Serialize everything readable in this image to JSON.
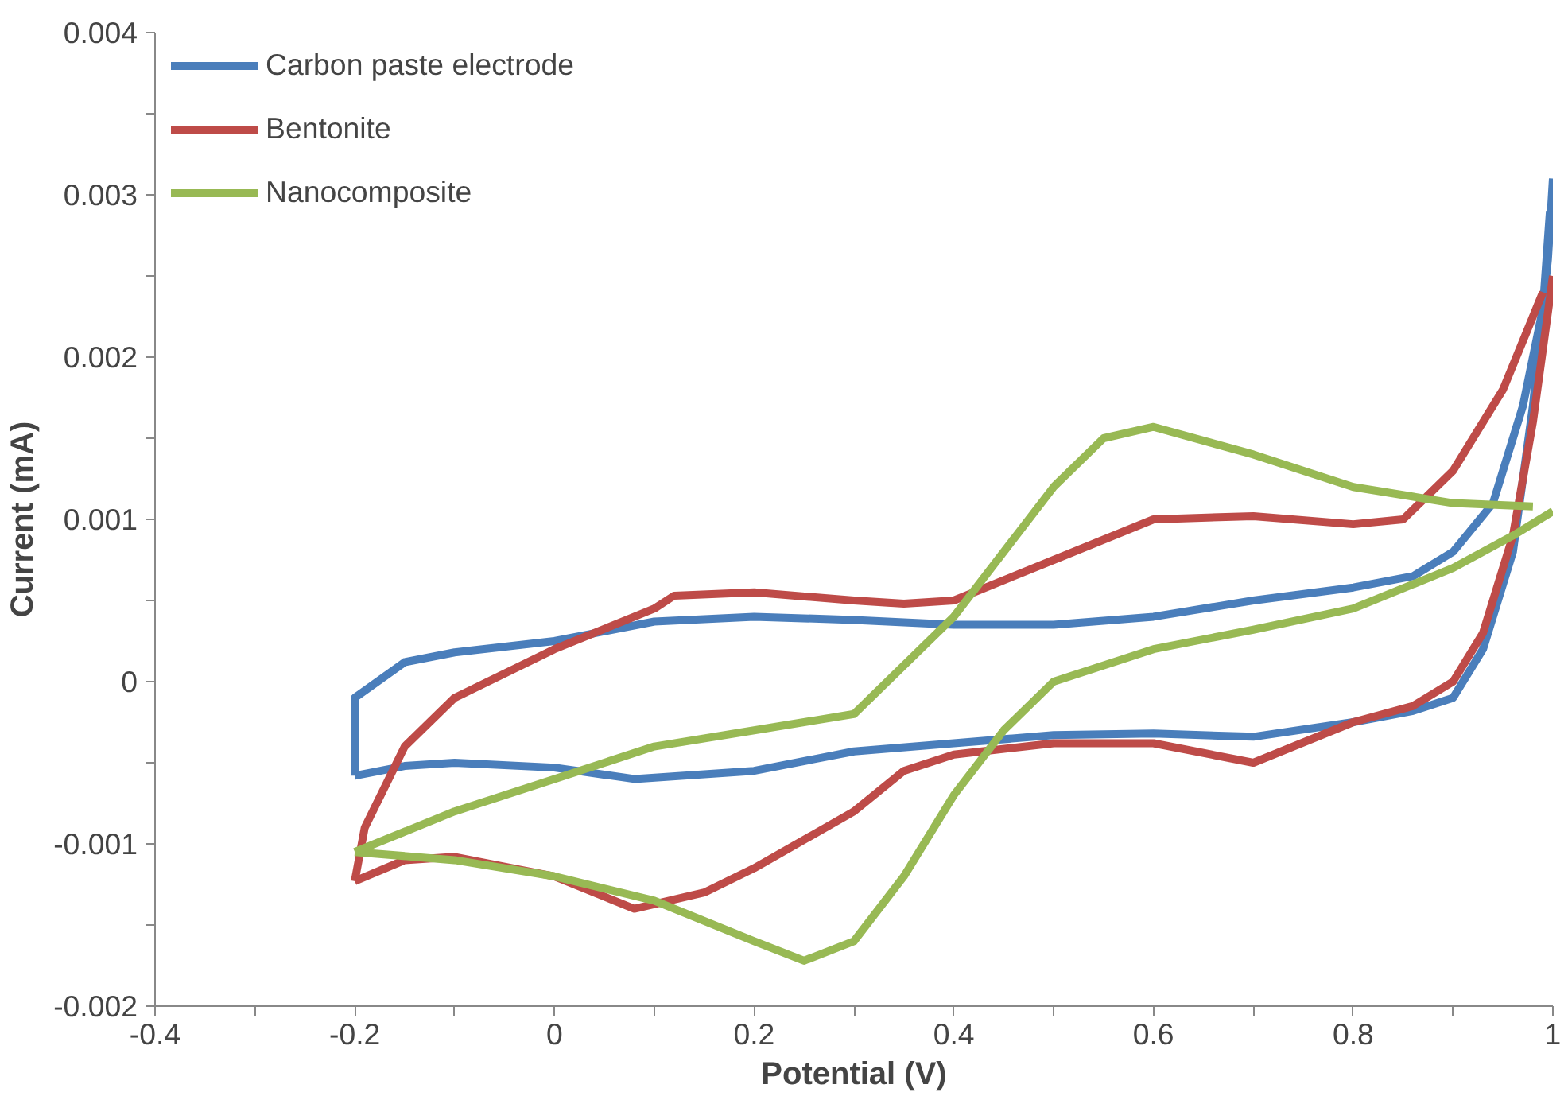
{
  "chart_data": {
    "type": "line",
    "xlabel": "Potential (V)",
    "ylabel": "Current (mA)",
    "xlim": [
      -0.4,
      1
    ],
    "ylim": [
      -0.002,
      0.004
    ],
    "xticks": [
      -0.4,
      {
        "value": -0.3,
        "label": null
      },
      -0.2,
      {
        "value": -0.1,
        "label": null
      },
      0,
      {
        "value": 0.1,
        "label": null
      },
      0.2,
      {
        "value": 0.3,
        "label": null
      },
      0.4,
      {
        "value": 0.5,
        "label": null
      },
      0.6,
      {
        "value": 0.7,
        "label": null
      },
      0.8,
      {
        "value": 0.9,
        "label": null
      },
      1
    ],
    "yticks": [
      -0.002,
      {
        "value": -0.0015,
        "label": null
      },
      -0.001,
      {
        "value": -0.0005,
        "label": null
      },
      0,
      {
        "value": 0.0005,
        "label": null
      },
      0.001,
      {
        "value": 0.0015,
        "label": null
      },
      0.002,
      {
        "value": 0.0025,
        "label": null
      },
      0.003,
      {
        "value": 0.0035,
        "label": null
      },
      0.004
    ],
    "grid": false,
    "legend": "top left",
    "marker": "none",
    "line_style": "solid",
    "series": [
      {
        "name": "Carbon paste electrode",
        "color": "#4a7ebb",
        "x": [
          -0.2,
          -0.15,
          -0.1,
          0,
          0.08,
          0.2,
          0.3,
          0.4,
          0.5,
          0.6,
          0.7,
          0.8,
          0.86,
          0.9,
          0.93,
          0.96,
          0.98,
          0.995,
          1
        ],
        "values": [
          -0.00058,
          -0.00052,
          -0.0005,
          -0.00053,
          -0.0006,
          -0.00055,
          -0.00043,
          -0.00038,
          -0.00033,
          -0.00032,
          -0.00034,
          -0.00025,
          -0.00018,
          -0.0001,
          0.0002,
          0.0008,
          0.0017,
          0.0026,
          0.0031
        ]
      },
      {
        "color": "#4a7ebb",
        "x": [
          -0.2,
          -0.2,
          -0.15,
          -0.1,
          0,
          0.1,
          0.2,
          0.3,
          0.4,
          0.5,
          0.6,
          0.7,
          0.8,
          0.86,
          0.9,
          0.94,
          0.97,
          0.99,
          0.997
        ],
        "values": [
          -0.00058,
          -0.0001,
          0.00012,
          0.00018,
          0.00025,
          0.00037,
          0.0004,
          0.00038,
          0.00035,
          0.00035,
          0.0004,
          0.0005,
          0.00058,
          0.00065,
          0.0008,
          0.0011,
          0.0017,
          0.0023,
          0.0029
        ]
      },
      {
        "name": "Bentonite",
        "color": "#be4b48",
        "x": [
          -0.2,
          -0.15,
          -0.1,
          0,
          0.08,
          0.15,
          0.2,
          0.3,
          0.35,
          0.4,
          0.5,
          0.6,
          0.7,
          0.8,
          0.86,
          0.9,
          0.93,
          0.96,
          0.98,
          1
        ],
        "values": [
          -0.00123,
          -0.0011,
          -0.00108,
          -0.0012,
          -0.0014,
          -0.0013,
          -0.00115,
          -0.0008,
          -0.00055,
          -0.00045,
          -0.00038,
          -0.00038,
          -0.0005,
          -0.00025,
          -0.00015,
          0,
          0.0003,
          0.0009,
          0.0016,
          0.0025
        ]
      },
      {
        "color": "#be4b48",
        "x": [
          -0.2,
          -0.19,
          -0.15,
          -0.1,
          0,
          0.1,
          0.12,
          0.2,
          0.3,
          0.35,
          0.4,
          0.5,
          0.6,
          0.7,
          0.8,
          0.85,
          0.9,
          0.95,
          0.97,
          0.99
        ],
        "values": [
          -0.00123,
          -0.0009,
          -0.0004,
          -0.0001,
          0.0002,
          0.00045,
          0.00053,
          0.00055,
          0.0005,
          0.00048,
          0.0005,
          0.00075,
          0.001,
          0.00102,
          0.00097,
          0.001,
          0.0013,
          0.0018,
          0.0021,
          0.0024
        ]
      },
      {
        "name": "Nanocomposite",
        "color": "#98b954",
        "x": [
          -0.2,
          -0.1,
          0,
          0.1,
          0.2,
          0.25,
          0.3,
          0.35,
          0.4,
          0.45,
          0.5,
          0.6,
          0.7,
          0.8,
          0.9,
          0.96,
          1
        ],
        "values": [
          -0.00105,
          -0.0011,
          -0.0012,
          -0.00135,
          -0.0016,
          -0.00172,
          -0.0016,
          -0.0012,
          -0.0007,
          -0.0003,
          0,
          0.0002,
          0.00032,
          0.00045,
          0.0007,
          0.0009,
          0.00105
        ]
      },
      {
        "color": "#98b954",
        "x": [
          -0.2,
          -0.1,
          0,
          0.1,
          0.2,
          0.3,
          0.4,
          0.5,
          0.55,
          0.6,
          0.7,
          0.8,
          0.9,
          0.98
        ],
        "values": [
          -0.00105,
          -0.0008,
          -0.0006,
          -0.0004,
          -0.0003,
          -0.0002,
          0.0004,
          0.0012,
          0.0015,
          0.00157,
          0.0014,
          0.0012,
          0.0011,
          0.00108
        ]
      }
    ]
  }
}
